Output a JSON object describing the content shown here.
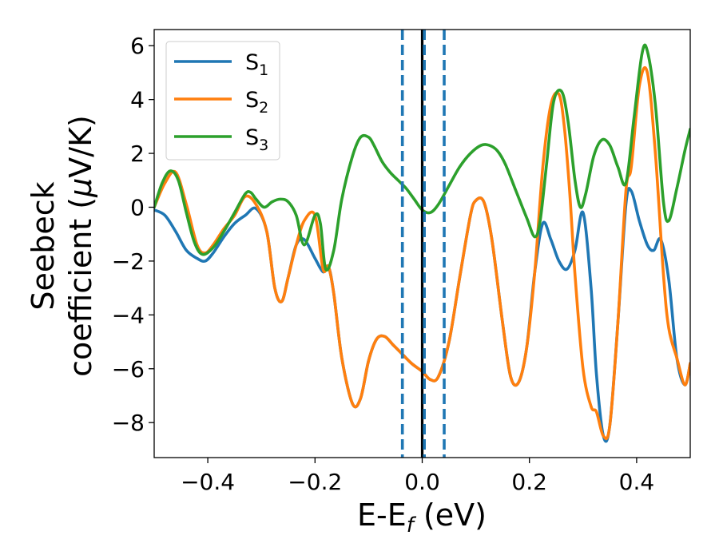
{
  "chart_data": {
    "type": "line",
    "xlabel": "E-E",
    "xlabel_sub": "f",
    "xlabel_unit": " (eV)",
    "ylabel_line1": "Seebeck",
    "ylabel_line2_pre": "coefficient  (",
    "ylabel_mu": "μ",
    "ylabel_line2_post": "V/K)",
    "xlim": [
      -0.5,
      0.5
    ],
    "ylim": [
      -9.3,
      6.6
    ],
    "xticks": [
      -0.4,
      -0.2,
      0.0,
      0.2,
      0.4
    ],
    "xtick_labels": [
      "−0.4",
      "−0.2",
      "0.0",
      "0.2",
      "0.4"
    ],
    "yticks": [
      -8,
      -6,
      -4,
      -2,
      0,
      2,
      4,
      6
    ],
    "ytick_labels": [
      "−8",
      "−6",
      "−4",
      "−2",
      "0",
      "2",
      "4",
      "6"
    ],
    "grid": false,
    "legend_position": "top-left",
    "vlines": [
      {
        "x": 0.0,
        "style": "solid",
        "color": "#000000"
      },
      {
        "x": -0.037,
        "style": "dashed",
        "color": "#1f77b4"
      },
      {
        "x": 0.004,
        "style": "dashed",
        "color": "#1f77b4"
      },
      {
        "x": 0.041,
        "style": "dashed",
        "color": "#1f77b4"
      }
    ],
    "series": [
      {
        "name": "S",
        "sub": "1",
        "color": "#1f77b4",
        "x": [
          -0.5,
          -0.48,
          -0.46,
          -0.44,
          -0.42,
          -0.405,
          -0.39,
          -0.37,
          -0.35,
          -0.33,
          -0.31,
          -0.29,
          -0.275,
          -0.262,
          -0.25,
          -0.235,
          -0.22,
          -0.2,
          -0.185,
          -0.175,
          -0.165,
          -0.15,
          -0.13,
          -0.115,
          -0.1,
          -0.085,
          -0.07,
          -0.055,
          -0.04,
          -0.02,
          0.0,
          0.015,
          0.03,
          0.05,
          0.07,
          0.09,
          0.1,
          0.115,
          0.13,
          0.15,
          0.165,
          0.18,
          0.195,
          0.21,
          0.225,
          0.24,
          0.255,
          0.27,
          0.285,
          0.3,
          0.315,
          0.325,
          0.338,
          0.35,
          0.365,
          0.38,
          0.39,
          0.405,
          0.42,
          0.432,
          0.445,
          0.46,
          0.475,
          0.49,
          0.5
        ],
        "values": [
          -0.1,
          -0.3,
          -0.9,
          -1.6,
          -1.9,
          -2.0,
          -1.7,
          -1.1,
          -0.6,
          -0.3,
          -0.05,
          -0.9,
          -3.0,
          -3.5,
          -2.6,
          -1.4,
          -1.2,
          -1.9,
          -2.4,
          -2.2,
          -3.2,
          -5.6,
          -7.3,
          -7.1,
          -5.7,
          -4.9,
          -4.8,
          -5.1,
          -5.4,
          -5.8,
          -6.1,
          -6.4,
          -6.3,
          -5.0,
          -2.6,
          -0.3,
          0.25,
          0.2,
          -1.2,
          -4.3,
          -6.3,
          -6.5,
          -5.2,
          -2.4,
          -0.6,
          -1.2,
          -2.0,
          -2.3,
          -1.6,
          -0.2,
          -3.0,
          -6.2,
          -8.5,
          -8.1,
          -4.3,
          0.1,
          0.6,
          -0.5,
          -1.4,
          -1.6,
          -1.2,
          -2.7,
          -5.6,
          -6.6,
          -5.8
        ]
      },
      {
        "name": "S",
        "sub": "2",
        "color": "#ff7f0e",
        "x": [
          -0.5,
          -0.48,
          -0.46,
          -0.44,
          -0.42,
          -0.405,
          -0.39,
          -0.37,
          -0.35,
          -0.33,
          -0.31,
          -0.29,
          -0.275,
          -0.262,
          -0.25,
          -0.235,
          -0.22,
          -0.2,
          -0.185,
          -0.175,
          -0.165,
          -0.15,
          -0.13,
          -0.115,
          -0.1,
          -0.085,
          -0.07,
          -0.055,
          -0.04,
          -0.02,
          0.0,
          0.015,
          0.03,
          0.05,
          0.07,
          0.09,
          0.1,
          0.115,
          0.13,
          0.15,
          0.165,
          0.18,
          0.195,
          0.21,
          0.225,
          0.24,
          0.255,
          0.265,
          0.275,
          0.285,
          0.3,
          0.315,
          0.325,
          0.338,
          0.35,
          0.365,
          0.38,
          0.39,
          0.405,
          0.42,
          0.435,
          0.45,
          0.46,
          0.475,
          0.49,
          0.5
        ],
        "values": [
          0.0,
          0.9,
          1.3,
          0.1,
          -1.4,
          -1.7,
          -1.4,
          -0.8,
          -0.3,
          0.4,
          0.1,
          -0.9,
          -3.0,
          -3.5,
          -2.6,
          -1.4,
          -0.5,
          -0.3,
          -2.3,
          -2.2,
          -3.2,
          -5.6,
          -7.3,
          -7.1,
          -5.7,
          -4.9,
          -4.8,
          -5.1,
          -5.4,
          -5.8,
          -6.1,
          -6.4,
          -6.3,
          -5.0,
          -2.6,
          -0.3,
          0.25,
          0.2,
          -1.2,
          -4.3,
          -6.3,
          -6.5,
          -5.2,
          -2.4,
          1.5,
          3.8,
          4.2,
          3.0,
          0.6,
          -2.5,
          -6.0,
          -7.4,
          -7.6,
          -8.5,
          -8.1,
          -4.3,
          0.6,
          1.5,
          4.5,
          5.0,
          2.0,
          -2.5,
          -4.5,
          -5.6,
          -6.6,
          -5.8
        ]
      },
      {
        "name": "S",
        "sub": "3",
        "color": "#2ca02c",
        "x": [
          -0.5,
          -0.485,
          -0.47,
          -0.455,
          -0.44,
          -0.425,
          -0.41,
          -0.39,
          -0.37,
          -0.35,
          -0.33,
          -0.32,
          -0.31,
          -0.295,
          -0.28,
          -0.265,
          -0.25,
          -0.235,
          -0.22,
          -0.2,
          -0.19,
          -0.18,
          -0.165,
          -0.15,
          -0.13,
          -0.115,
          -0.1,
          -0.09,
          -0.075,
          -0.06,
          -0.045,
          -0.03,
          -0.015,
          0.0,
          0.015,
          0.03,
          0.05,
          0.07,
          0.09,
          0.11,
          0.125,
          0.14,
          0.155,
          0.175,
          0.195,
          0.21,
          0.22,
          0.232,
          0.245,
          0.26,
          0.272,
          0.285,
          0.295,
          0.305,
          0.32,
          0.335,
          0.35,
          0.365,
          0.38,
          0.395,
          0.41,
          0.42,
          0.435,
          0.45,
          0.46,
          0.475,
          0.49,
          0.5
        ],
        "values": [
          0.0,
          0.9,
          1.35,
          1.0,
          -0.2,
          -1.3,
          -1.75,
          -1.5,
          -0.9,
          -0.2,
          0.5,
          0.55,
          0.3,
          0.0,
          0.2,
          0.3,
          0.2,
          -0.3,
          -1.4,
          -0.3,
          -0.6,
          -2.3,
          -1.6,
          0.3,
          1.9,
          2.6,
          2.6,
          2.3,
          1.7,
          1.3,
          1.0,
          0.7,
          0.3,
          -0.1,
          -0.2,
          0.1,
          0.8,
          1.5,
          2.0,
          2.3,
          2.3,
          2.1,
          1.6,
          0.6,
          -0.4,
          -1.1,
          -0.5,
          1.6,
          3.9,
          4.3,
          3.2,
          1.0,
          0.0,
          0.5,
          1.9,
          2.5,
          2.3,
          1.5,
          0.9,
          3.3,
          5.7,
          5.8,
          3.8,
          0.2,
          -0.5,
          0.7,
          2.1,
          2.9
        ]
      }
    ]
  }
}
